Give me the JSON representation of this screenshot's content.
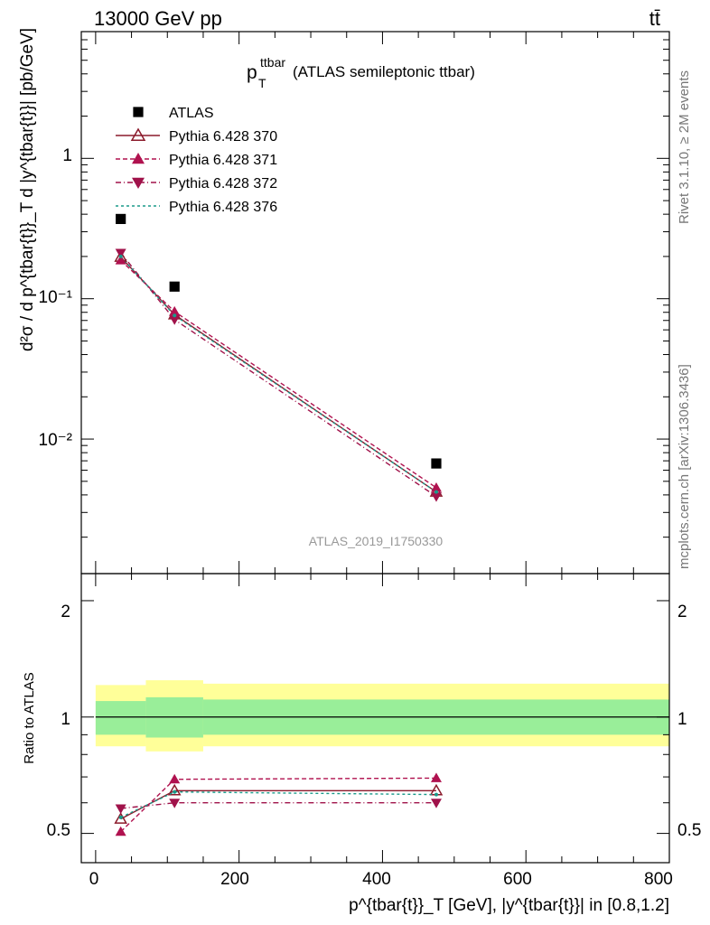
{
  "header": {
    "left": "13000 GeV pp",
    "right": "tt̄"
  },
  "side_labels": {
    "rivet": "Rivet 3.1.10, ≥ 2M events",
    "mcplots": "mcplots.cern.ch [arXiv:1306.3436]"
  },
  "main_plot": {
    "title_main": "p",
    "title_sup": "ttbar",
    "title_sub": "T",
    "title_rest": "(ATLAS semileptonic ttbar)",
    "ylabel": "d²σ / d p^{tbar{t}}_T d |y^{tbar{t}}| [pb/GeV]",
    "watermark": "ATLAS_2019_I1750330",
    "ytick_labels": [
      "1",
      "10⁻¹",
      "10⁻²"
    ]
  },
  "ratio_plot": {
    "ylabel": "Ratio to ATLAS",
    "ytick_labels": [
      "2",
      "1",
      "0.5"
    ]
  },
  "xaxis": {
    "label": "p^{tbar{t}}_T [GeV], |y^{tbar{t}}| in [0.8,1.2]",
    "tick_labels": [
      "0",
      "200",
      "400",
      "600",
      "800"
    ]
  },
  "legend": [
    {
      "label": "ATLAS",
      "color": "#000000",
      "marker": "square",
      "dash": ""
    },
    {
      "label": "Pythia 6.428 370",
      "color": "#8b1a2b",
      "marker": "triangle-up-open",
      "dash": ""
    },
    {
      "label": "Pythia 6.428 371",
      "color": "#b0124f",
      "marker": "triangle-up",
      "dash": "5,3"
    },
    {
      "label": "Pythia 6.428 372",
      "color": "#a0124a",
      "marker": "triangle-down",
      "dash": "6,3,1,3"
    },
    {
      "label": "Pythia 6.428 376",
      "color": "#1a9a8a",
      "marker": "none",
      "dash": "3,3"
    }
  ],
  "chart_data": [
    {
      "type": "scatter",
      "title": "p_T^ttbar (ATLAS semileptonic ttbar)",
      "xlabel": "p^{tbar{t}}_T [GeV], |y^{tbar{t}}| in [0.8,1.2]",
      "ylabel": "d²σ / d p^{tbar{t}}_T d |y^{tbar{t}}| [pb/GeV]",
      "xlim": [
        -20,
        800
      ],
      "ylim": [
        0.0011,
        8
      ],
      "yscale": "log",
      "bins": [
        [
          0,
          70
        ],
        [
          70,
          150
        ],
        [
          150,
          800
        ]
      ],
      "x": [
        35,
        110,
        475
      ],
      "series": [
        {
          "name": "ATLAS",
          "values": [
            0.37,
            0.122,
            0.0067
          ]
        },
        {
          "name": "Pythia 6.428 370",
          "values": [
            0.198,
            0.077,
            0.0042
          ]
        },
        {
          "name": "Pythia 6.428 371",
          "values": [
            0.188,
            0.081,
            0.0045
          ]
        },
        {
          "name": "Pythia 6.428 372",
          "values": [
            0.212,
            0.071,
            0.0039
          ]
        },
        {
          "name": "Pythia 6.428 376",
          "values": [
            0.2,
            0.076,
            0.0042
          ]
        }
      ]
    },
    {
      "type": "line",
      "ylabel": "Ratio to ATLAS",
      "xlim": [
        -20,
        800
      ],
      "ylim": [
        0.42,
        2.35
      ],
      "yscale": "log",
      "bins": [
        [
          0,
          70
        ],
        [
          70,
          150
        ],
        [
          150,
          800
        ]
      ],
      "bands": {
        "inner": [
          [
            0.9,
            1.1
          ],
          [
            0.885,
            1.125
          ],
          [
            0.9,
            1.11
          ]
        ],
        "outer": [
          [
            0.84,
            1.21
          ],
          [
            0.815,
            1.245
          ],
          [
            0.84,
            1.22
          ]
        ]
      },
      "x": [
        35,
        110,
        475
      ],
      "series": [
        {
          "name": "Pythia 6.428 370",
          "values": [
            0.545,
            0.645,
            0.645
          ]
        },
        {
          "name": "Pythia 6.428 371",
          "values": [
            0.505,
            0.69,
            0.695
          ]
        },
        {
          "name": "Pythia 6.428 372",
          "values": [
            0.58,
            0.6,
            0.6
          ]
        },
        {
          "name": "Pythia 6.428 376",
          "values": [
            0.55,
            0.64,
            0.63
          ]
        }
      ]
    }
  ]
}
